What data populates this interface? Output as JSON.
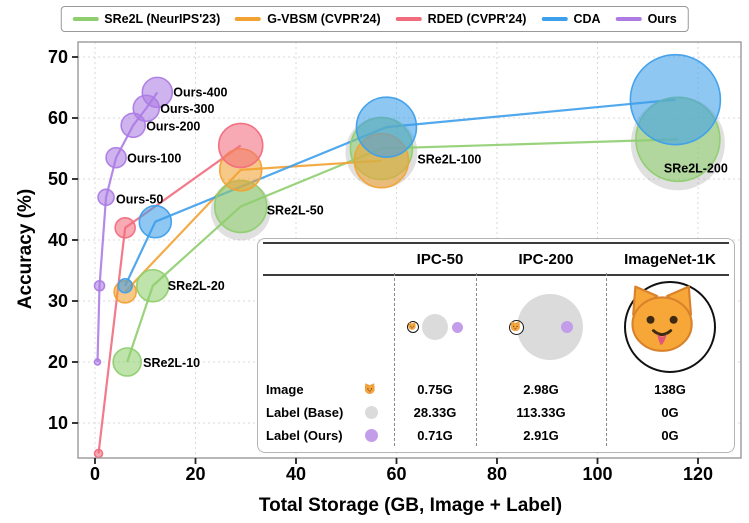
{
  "legend": {
    "items": [
      {
        "label": "SRe2L (NeurIPS'23)",
        "color": "#8FCE6F"
      },
      {
        "label": "G-VBSM (CVPR'24)",
        "color": "#F2A233"
      },
      {
        "label": "RDED (CVPR'24)",
        "color": "#F16D7E"
      },
      {
        "label": "CDA",
        "color": "#3E9FEA"
      },
      {
        "label": "Ours",
        "color": "#AC7CE4"
      }
    ]
  },
  "chart_data": {
    "type": "scatter",
    "subtype": "bubble-line",
    "title": "",
    "xlabel": "Total Storage (GB, Image + Label)",
    "ylabel": "Accuracy (%)",
    "xlim": [
      -4,
      128
    ],
    "ylim": [
      4,
      73
    ],
    "x_ticks": [
      0,
      20,
      40,
      60,
      80,
      100,
      120
    ],
    "y_ticks": [
      10,
      20,
      30,
      40,
      50,
      60,
      70
    ],
    "grid": true,
    "legend_position": "top",
    "series": [
      {
        "name": "SRe2L (NeurIPS'23)",
        "color": "#8FCE6F",
        "points": [
          {
            "x": 6.4,
            "y": 20,
            "r": 14,
            "label": "SRe2L-10",
            "ldx": 16,
            "ldy": 5
          },
          {
            "x": 11.5,
            "y": 32.5,
            "r": 16,
            "label": "SRe2L-20",
            "ldx": 15,
            "ldy": 4
          },
          {
            "x": 29,
            "y": 45.5,
            "r": 26,
            "label": "SRe2L-50",
            "ldx": 26,
            "ldy": 8,
            "halo": 30
          },
          {
            "x": 57,
            "y": 55,
            "r": 31,
            "label": "SRe2L-100",
            "ldx": 36,
            "ldy": 15,
            "halo": 36
          },
          {
            "x": 116,
            "y": 56.5,
            "r": 42,
            "label": "SRe2L-200",
            "ldx": -14,
            "ldy": 33,
            "halo": 47
          }
        ]
      },
      {
        "name": "G-VBSM (CVPR'24)",
        "color": "#F2A233",
        "points": [
          {
            "x": 6,
            "y": 31.5,
            "r": 11
          },
          {
            "x": 29,
            "y": 51.5,
            "r": 21
          },
          {
            "x": 57,
            "y": 53,
            "r": 27
          }
        ]
      },
      {
        "name": "RDED (CVPR'24)",
        "color": "#F16D7E",
        "points": [
          {
            "x": 0.7,
            "y": 5,
            "r": 4
          },
          {
            "x": 6,
            "y": 42,
            "r": 10
          },
          {
            "x": 29,
            "y": 55.5,
            "r": 22
          }
        ]
      },
      {
        "name": "CDA",
        "color": "#3E9FEA",
        "points": [
          {
            "x": 6,
            "y": 32.5,
            "r": 7
          },
          {
            "x": 12,
            "y": 43,
            "r": 16
          },
          {
            "x": 58,
            "y": 58.5,
            "r": 30
          },
          {
            "x": 115.5,
            "y": 63,
            "r": 45
          }
        ]
      },
      {
        "name": "Ours",
        "color": "#AC7CE4",
        "points": [
          {
            "x": 0.5,
            "y": 20,
            "r": 3
          },
          {
            "x": 0.9,
            "y": 32.5,
            "r": 5
          },
          {
            "x": 2.2,
            "y": 47,
            "r": 8,
            "label": "Ours-50",
            "ldx": 10,
            "ldy": 6
          },
          {
            "x": 4.2,
            "y": 53.5,
            "r": 10,
            "label": "Ours-100",
            "ldx": 11,
            "ldy": 5
          },
          {
            "x": 7.6,
            "y": 58.8,
            "r": 12,
            "label": "Ours-200",
            "ldx": 13,
            "ldy": 5
          },
          {
            "x": 10.2,
            "y": 61.6,
            "r": 13,
            "label": "Ours-300",
            "ldx": 14,
            "ldy": 5
          },
          {
            "x": 12.4,
            "y": 64.2,
            "r": 15,
            "label": "Ours-400",
            "ldx": 16,
            "ldy": 4
          }
        ]
      }
    ]
  },
  "inset": {
    "columns": [
      "IPC-50",
      "IPC-200",
      "ImageNet-1K"
    ],
    "rows": [
      {
        "label": "Image",
        "icon": "cat-icon",
        "values": [
          "0.75G",
          "2.98G",
          "138G"
        ]
      },
      {
        "label": "Label (Base)",
        "icon": "gray-dot",
        "values": [
          "28.33G",
          "113.33G",
          "0G"
        ]
      },
      {
        "label": "Label (Ours)",
        "icon": "purple-dot",
        "values": [
          "0.71G",
          "2.91G",
          "0G"
        ]
      }
    ],
    "colors": {
      "base_gray": "#DBDBDB",
      "ours_purple": "#C49DEA"
    }
  }
}
